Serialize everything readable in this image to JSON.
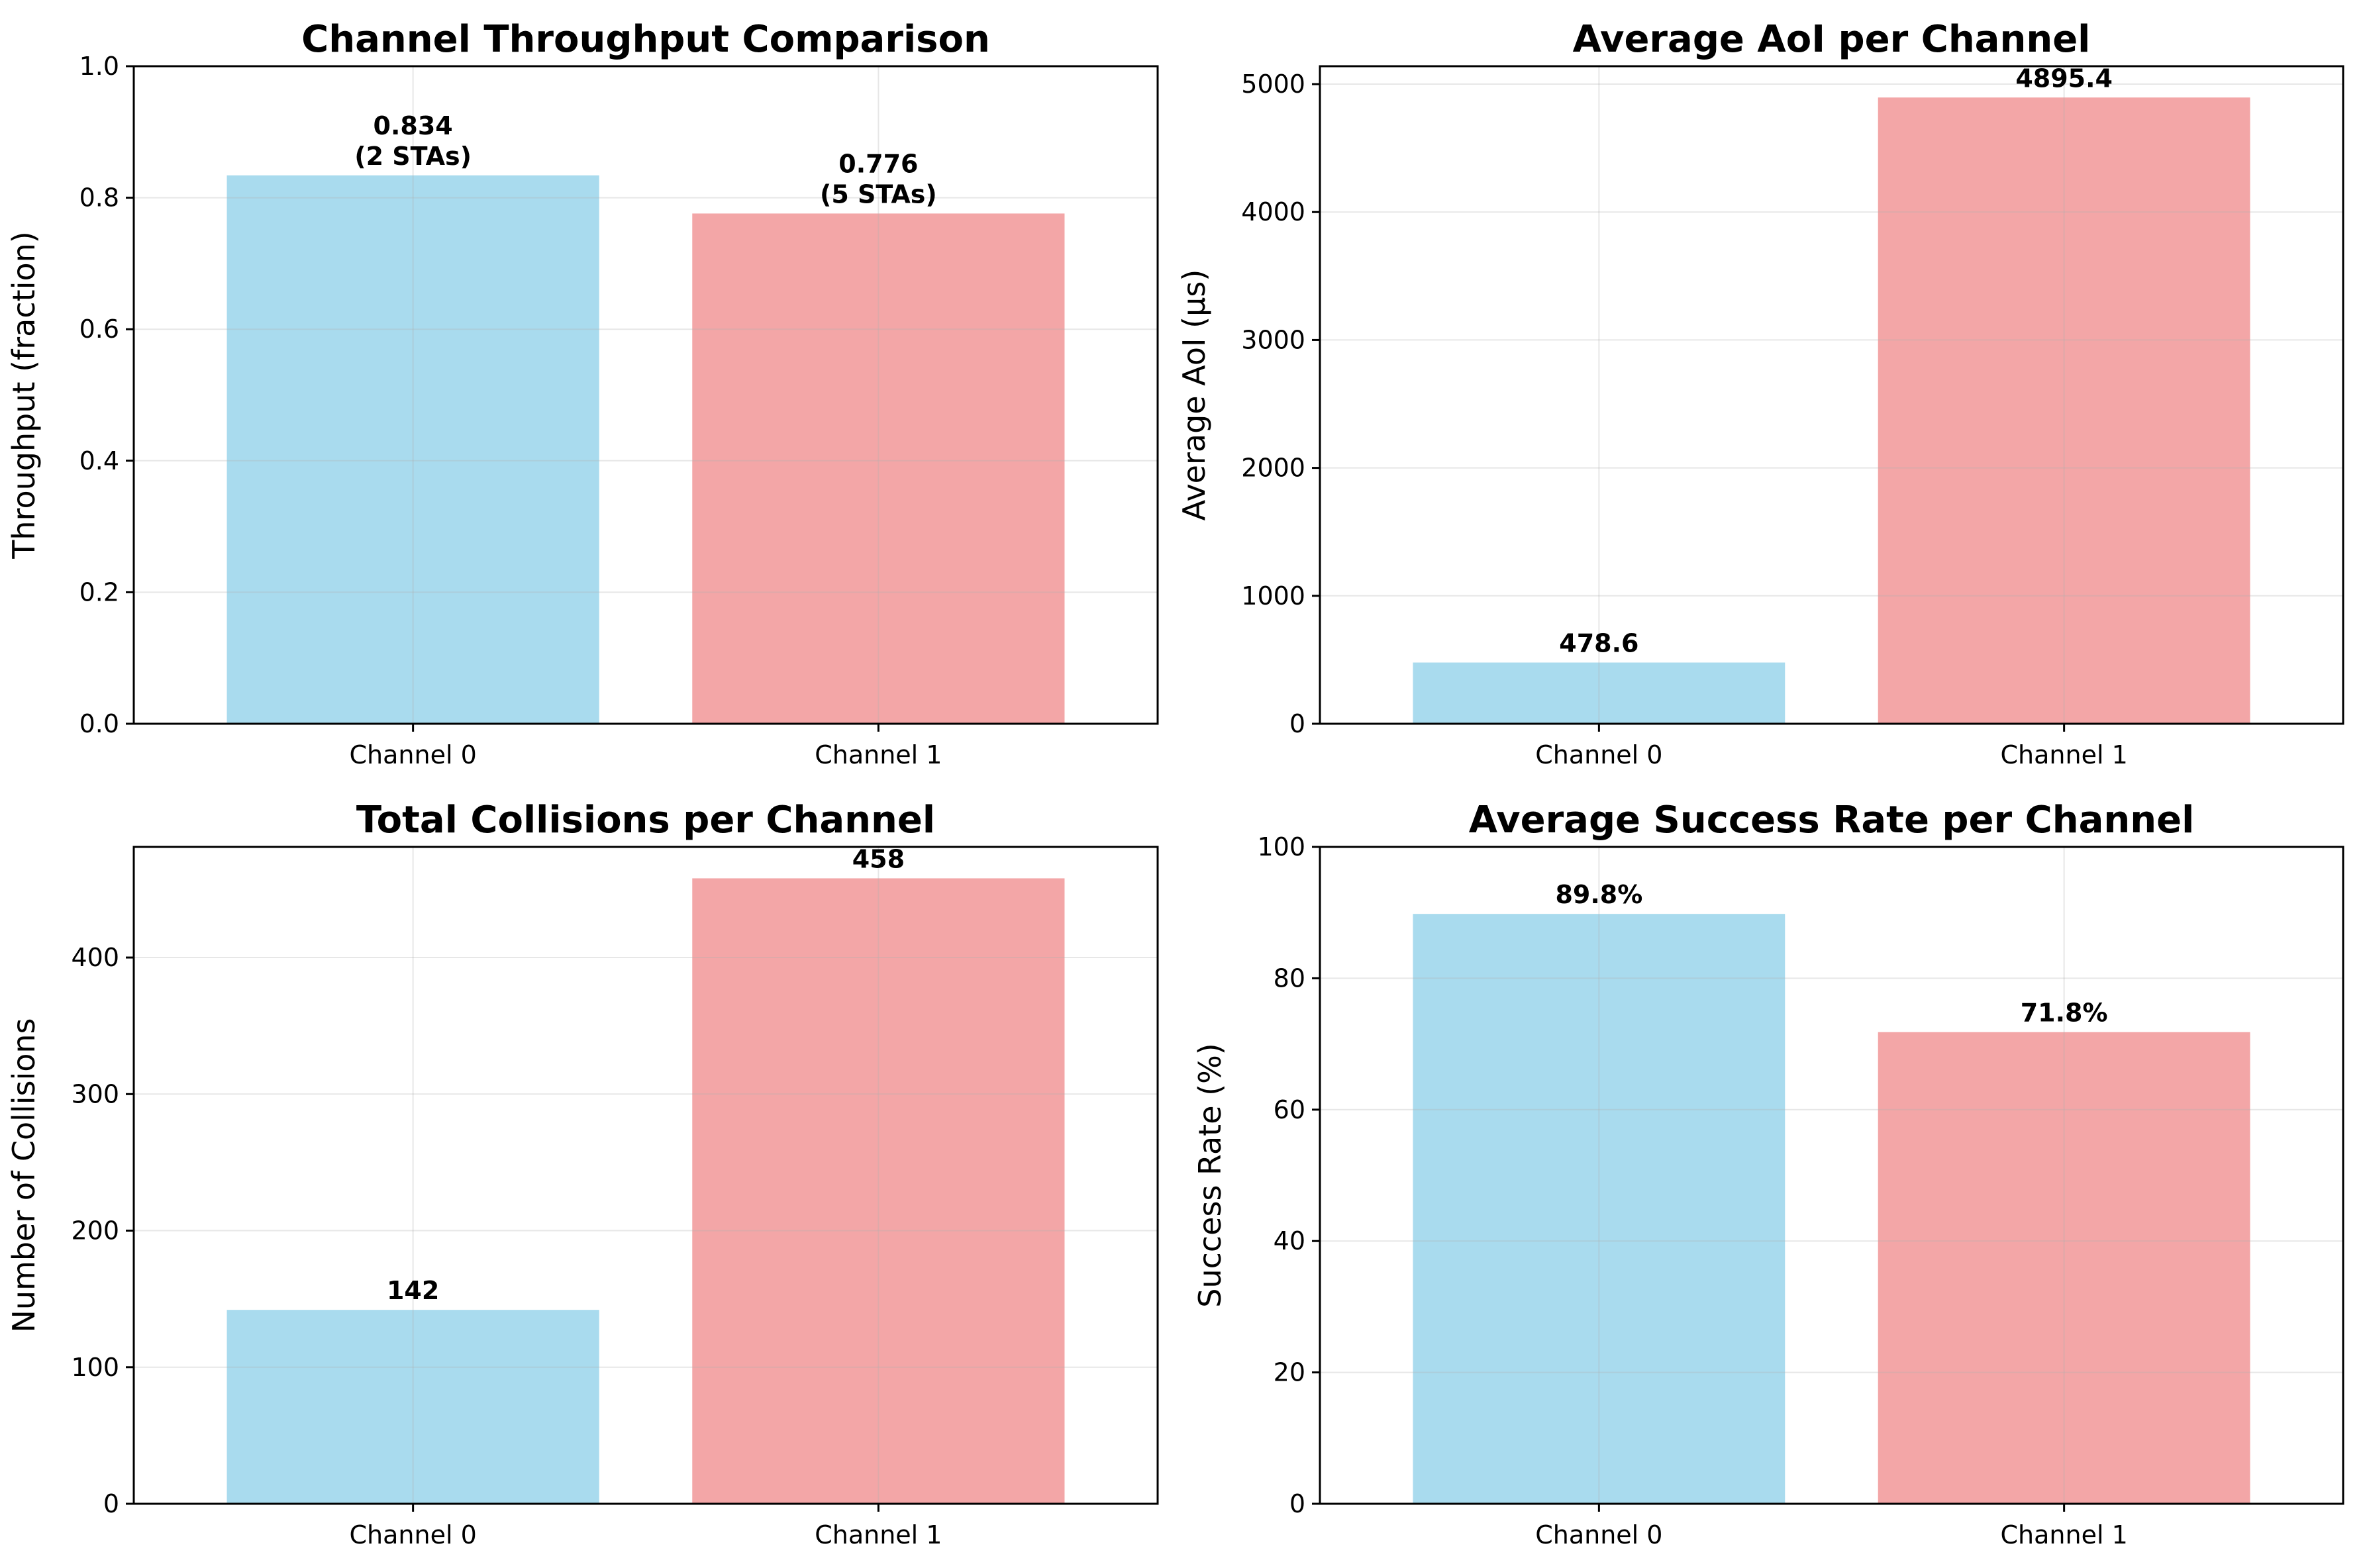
{
  "chart_data": [
    {
      "type": "bar",
      "title": "Channel Throughput Comparison",
      "xlabel": "",
      "ylabel": "Throughput (fraction)",
      "categories": [
        "Channel 0",
        "Channel 1"
      ],
      "values": [
        0.834,
        0.776
      ],
      "labels": [
        [
          "0.834",
          "(2 STAs)"
        ],
        [
          "0.776",
          "(5 STAs)"
        ]
      ],
      "ylim": [
        0,
        1.0
      ],
      "yticks": [
        0.0,
        0.2,
        0.4,
        0.6,
        0.8,
        1.0
      ],
      "ytick_labels": [
        "0.0",
        "0.2",
        "0.4",
        "0.6",
        "0.8",
        "1.0"
      ],
      "colors": [
        "#a9dbee",
        "#f3a6a7"
      ],
      "grid": true
    },
    {
      "type": "bar",
      "title": "Average AoI per Channel",
      "xlabel": "",
      "ylabel": "Average AoI (μs)",
      "categories": [
        "Channel 0",
        "Channel 1"
      ],
      "values": [
        478.6,
        4895.4
      ],
      "labels": [
        [
          "478.6"
        ],
        [
          "4895.4"
        ]
      ],
      "ylim": [
        0,
        5140
      ],
      "yticks": [
        0,
        1000,
        2000,
        3000,
        4000,
        5000
      ],
      "ytick_labels": [
        "0",
        "1000",
        "2000",
        "3000",
        "4000",
        "5000"
      ],
      "colors": [
        "#a9dbee",
        "#f3a6a7"
      ],
      "grid": true
    },
    {
      "type": "bar",
      "title": "Total Collisions per Channel",
      "xlabel": "",
      "ylabel": "Number of Collisions",
      "categories": [
        "Channel 0",
        "Channel 1"
      ],
      "values": [
        142,
        458
      ],
      "labels": [
        [
          "142"
        ],
        [
          "458"
        ]
      ],
      "ylim": [
        0,
        481
      ],
      "yticks": [
        0,
        100,
        200,
        300,
        400
      ],
      "ytick_labels": [
        "0",
        "100",
        "200",
        "300",
        "400"
      ],
      "colors": [
        "#a9dbee",
        "#f3a6a7"
      ],
      "grid": true
    },
    {
      "type": "bar",
      "title": "Average Success Rate per Channel",
      "xlabel": "",
      "ylabel": "Success Rate (%)",
      "categories": [
        "Channel 0",
        "Channel 1"
      ],
      "values": [
        89.8,
        71.8
      ],
      "labels": [
        [
          "89.8%"
        ],
        [
          "71.8%"
        ]
      ],
      "ylim": [
        0,
        100
      ],
      "yticks": [
        0,
        20,
        40,
        60,
        80,
        100
      ],
      "ytick_labels": [
        "0",
        "20",
        "40",
        "60",
        "80",
        "100"
      ],
      "colors": [
        "#a9dbee",
        "#f3a6a7"
      ],
      "grid": true
    }
  ]
}
